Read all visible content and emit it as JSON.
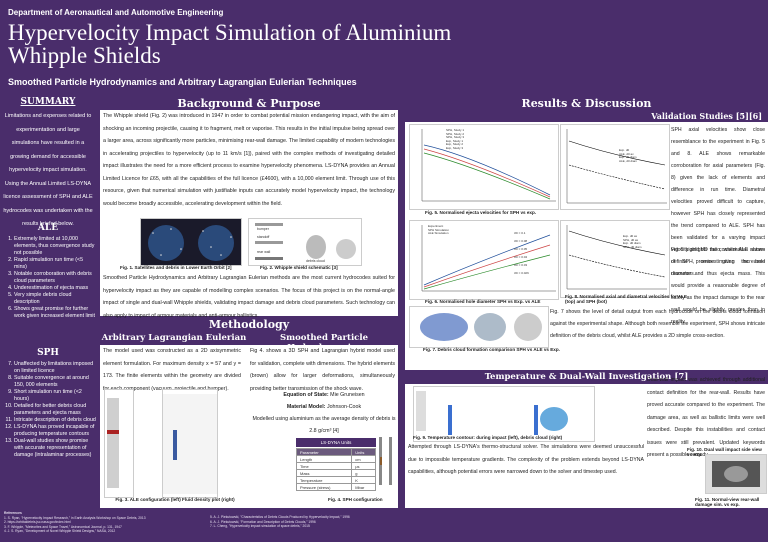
{
  "header": {
    "department": "Department of Aeronautical and Automotive Engineering",
    "title": "Hypervelocity Impact Simulation of Aluminium Whipple Shields",
    "subtitle": "Smoothed Particle Hydrodynamics and Arbitrary Lagrangian Eulerian Techniques"
  },
  "left": {
    "summary_heading": "SUMMARY",
    "summary_text": "Limitations and expenses related to experimentation and large simulations have resulted in a growing demand for accessible hypervelocity impact simulation. Using the Annual Limited LS-DYNA licence assessment of SPH and ALE hydrocodes was undertaken with the results briefed below.",
    "ale_heading": "ALE",
    "ale_items": [
      "Extremely limited at 10,000 elements, thus convergence study not possible",
      "Rapid simulation run time (<5 mins)",
      "Notable corroboration with debris cloud parameters",
      "Underestimation of ejecta mass",
      "Very simple debris cloud description",
      "Shows great promise for further work given increased element limit"
    ],
    "sph_heading": "SPH",
    "sph_items": [
      "Unaffected by limitations imposed on limited licence",
      "Suitable convergence at around 150, 000 elements",
      "Short simulation run time (<2 hours)",
      "Detailed for better debris cloud parameters and ejecta mass",
      "Intricate description of debris cloud",
      "LS-DYNA has proved incapable of producing temperature contours",
      "Dual-wall studies show promise with accurate representation of damage (intralaminar processes)"
    ]
  },
  "middle": {
    "background_heading": "Background & Purpose",
    "background_text": "The Whipple shield (Fig. 2) was introduced in 1947 in order to combat potential mission endangering impact, with the aim of shocking an incoming projectile, causing it to fragment, melt or vaporise. This results in the initial impulse being spread over a larger area, across significantly more particles, minimising rear-wall damage. The limited capability of modern technologies in accelerating projectiles to hypervelocity (up to 11 km/s [1]), paired with the complex methods of investigating detailed impact illustrates the need for a more efficient process to examine hypervelocity phenomena. LS-DYNA provides an Annual Limited Licence for £65, with all the capabilities of the full licence (£4600), with a 10,000 element limit. Through use of this resource, given that numerical simulation with justifiable inputs can accurately model hypervelocity impact, the technology would become broadly accessible, accelerating development within the field.",
    "fig1_caption": "Fig. 1. Satellites and debris in Lower Earth Orbit [2]",
    "fig2_caption": "Fig. 2. Whipple shield schematic [3]",
    "fig2_labels": [
      "bumper",
      "standoff",
      "rear wall",
      "debris cloud"
    ],
    "purpose_text": "Smoothed Particle Hydrodynamics and Arbitrary Lagrangian Eulerian methods are the most current hydrocodes suited for hypervelocity impact as they are capable of modelling complex scenarios. The focus of this project is on the normal-angle impact of single and dual-wall Whipple shields, validating impact damage and debris cloud parameters. Such technology can also apply to impact of armour materials and anti-armour ballistics.",
    "methodology_heading": "Methodology",
    "ale_sub": "Arbitrary Lagrangian Eulerian",
    "sph_sub": "Smoothed Particle Hydrodynamics",
    "ale_text": "The model used was constructed as a 2D axisymmetric element formulation. For maximum density x = 57 and y = 173. The finite elements within the geometry are divided for each component (vacuum, projectile and bumper).",
    "sph_text": "Fig 4. shows a 3D SPH and Lagrangian hybrid model used for validation, complete with dimensions. The hybrid elements (brown) allow for larger deformations, simultaneously providing better transmission of the shock wave.",
    "eos_label": "Equation of State:",
    "eos_value": "Mie Gruneisen",
    "material_label": "Material Model:",
    "material_value": "Johnson-Cook",
    "density_text": "Modelled using aluminium as the average density of debris is 2.8 g/cm³ [4]",
    "table_title": "LS-DYNA Units",
    "table_rows": [
      [
        "Parameter",
        "Units"
      ],
      [
        "Length",
        "cm"
      ],
      [
        "Time",
        "μs"
      ],
      [
        "Mass",
        "g"
      ],
      [
        "Temperature",
        "K"
      ],
      [
        "Pressure (stress)",
        "Mbar"
      ]
    ],
    "fig3_caption": "Fig. 3. ALE configuration (left) Fluid density plot (right)",
    "fig4_caption": "Fig. 4. SPH configuration",
    "fig4_labels": [
      "Hybrid Elements",
      "Bumper",
      "Rear wall"
    ]
  },
  "right": {
    "results_heading": "Results & Discussion",
    "validation_sub": "Validation Studies [5][6]",
    "fig5_caption": "Fig. 5. Normalised ejecta velocities for SPH vs exp.",
    "fig6_caption": "Fig. 6. Normalised hole diameter SPH vs Exp. vs ALE",
    "fig7_caption": "Fig. 7. Debris cloud formation comparison SPH vs ALE vs Exp.",
    "fig8_caption": "Fig. 8. Normalised axial and diametral velocities for ALE (top) and SPH (bot)",
    "fig5_legend": [
      "SPH, Study 1",
      "SPH, Study 2",
      "SPH, Study 3",
      "Exp, Study 1",
      "Exp, Study 2",
      "Exp, Study 3"
    ],
    "fig8_top_legend": [
      "Exp. d0",
      "ALE, d0 ax",
      "Exp. d0 diam",
      "ALE, d0 diam"
    ],
    "fig8_bot_legend": [
      "Exp. d0 ax",
      "SPH, d0 ax",
      "Exp. d0 diam",
      "SPH, d0 diam"
    ],
    "fig6_legend": [
      "Experiment",
      "SPH Simulation",
      "ALE Simulation"
    ],
    "fig6_annotations": [
      "t/D = 0.1",
      "t/D = 0.08",
      "t/D = 0.05",
      "t/D = 0.04",
      "t/D = 0.03",
      "t/D = 0.026"
    ],
    "results_text1": "SPH axial velocities show close resemblance to the experiment in Fig. 5 and 8. ALE shows remarkable corroboration for axial parameters (Fig. 8) given the lack of elements and difference in run time. Diametral velocities proved difficult to capture, however SPH has closely represented the trend compared to ALE. SPH has been validated for a varying impact velocity and t/D ratio, whilst ALE shows definite promise given increased resources.",
    "results_text2": "Fig 6 highlights the conservative nature of SPH, overestimating the hole diameter and thus ejecta mass. This would provide a reasonable degree of safety as the impact damage to the rear wall would be slightly greater than in reality.",
    "results_text3": "Fig. 7 shows the level of detail output from each hydrocode on the debris cloud formation against the experimental shape. Although both resemble the experiment, SPH shows intricate definition of the debris cloud, whilst ALE provides a 2D simple cross-section.",
    "temperature_sub": "Temperature & Dual-Wall Investigation [7]",
    "fig9_caption": "Fig. 9. Temperature contour: during impact (left), debris cloud (right)",
    "fig10_caption": "Fig. 10. Dual wall impact side view vs exp.",
    "fig11_caption": "Fig. 11. Normal-view rear-wall damage sim. vs exp.",
    "temp_text1": "Dual-wall impact was achieved through additional contact definition for the rear-wall. Results have proved accurate compared to the experiment. The damage area, as well as ballistic limits were well described. Despite this instabilities and contact issues were still prevalent. Updated keywords present a possible remedy.",
    "temp_text2": "Attempted through LS-DYNA's thermo-structural solver. The simulations were deemed unsuccessful due to impossible temperature gradients. The complexity of the problem extends beyond LS-DYNA capabilities, although potential errors were narrowed down to the solver and timestep used."
  },
  "footer": {
    "references_label": "References",
    "refs": [
      "1. S. Ryan, \"Hypervelocity Impact Research,\" in Earth Analysis Workshop on Space Debris, 2013",
      "2. https://orbitaldebris.jsc.nasa.gov/index.html",
      "3. F. Whipple, \"Meteorites and Space Travel,\" Astronomical Journal, p. 131, 1947",
      "4. J. S. Ryan, \"Development of Novel Whipple Shield Designs,\" NASA, 2012",
      "5. A. J. Piekutowski, \"Characteristics of Debris Clouds Produced by Hypervelocity Impact,\" 1996",
      "6. A. J. Piekutowski, \"Formation and Description of Debris Clouds,\" 1996",
      "7. L. Cheng, \"Hypervelocity impact simulation of space debris,\" 2015"
    ]
  }
}
